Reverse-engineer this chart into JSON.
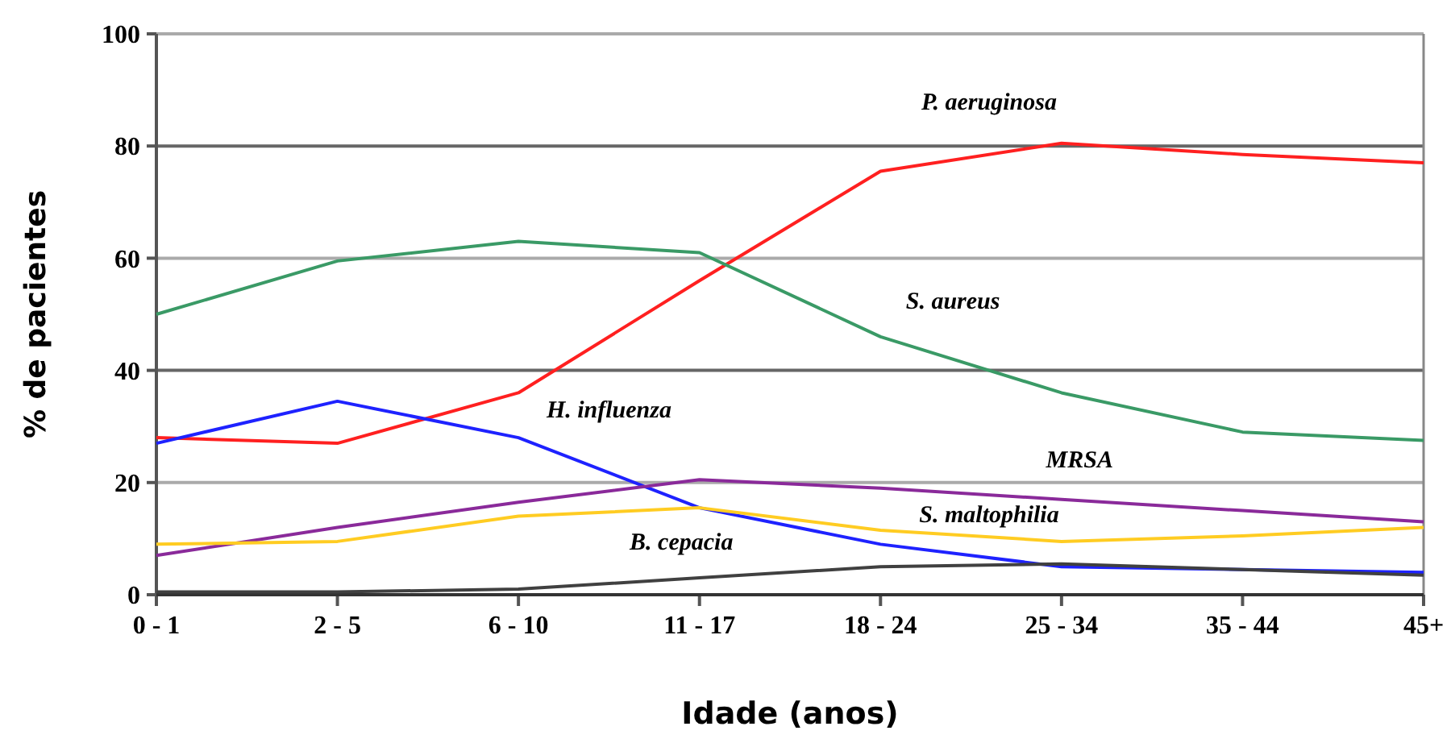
{
  "chart_data": {
    "type": "line",
    "xlabel": "Idade (anos)",
    "ylabel": "% de pacientes",
    "categories": [
      "0 - 1",
      "2 - 5",
      "6 - 10",
      "11 - 17",
      "18 - 24",
      "25 - 34",
      "35 - 44",
      "45+"
    ],
    "ylim": [
      0,
      100
    ],
    "yticks": [
      0,
      20,
      40,
      60,
      80,
      100
    ],
    "grid": "y",
    "marker": "none",
    "line_style": "solid",
    "series": [
      {
        "name": "P. aeruginosa",
        "color": "#ff2020",
        "values": [
          28,
          27,
          36,
          56,
          75.5,
          80.5,
          78.5,
          77
        ]
      },
      {
        "name": "S. aureus",
        "color": "#3a9a66",
        "values": [
          50,
          59.5,
          63,
          61,
          46,
          36,
          29,
          27.5
        ]
      },
      {
        "name": "H. influenza",
        "color": "#1e22ff",
        "values": [
          27,
          34.5,
          28,
          15.5,
          9,
          5,
          4.5,
          4
        ]
      },
      {
        "name": "MRSA",
        "color": "#8a2a9a",
        "values": [
          7,
          12,
          16.5,
          20.5,
          19,
          17,
          15,
          13
        ]
      },
      {
        "name": "S. maltophilia",
        "color": "#ffcc22",
        "values": [
          9,
          9.5,
          14,
          15.5,
          11.5,
          9.5,
          10.5,
          12
        ]
      },
      {
        "name": "B. cepacia",
        "color": "#404040",
        "values": [
          0.5,
          0.5,
          1,
          3,
          5,
          5.5,
          4.5,
          3.5
        ]
      }
    ]
  }
}
